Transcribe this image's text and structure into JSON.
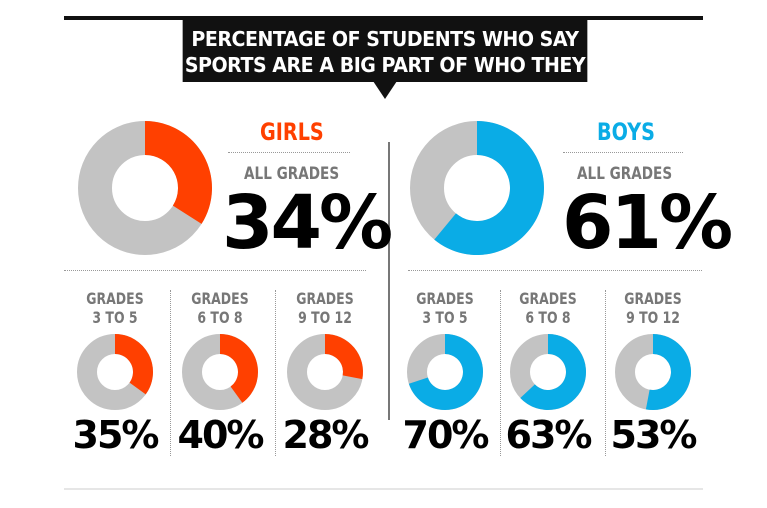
{
  "chart_data": {
    "type": "pie",
    "title": "PERCENTAGE OF STUDENTS WHO SAY SPORTS ARE A BIG PART OF WHO THEY ARE",
    "title_lines": [
      "PERCENTAGE OF STUDENTS WHO SAY",
      "SPORTS ARE A BIG PART OF WHO THEY ARE"
    ],
    "groups": [
      {
        "name": "GIRLS",
        "color": "#ff4000",
        "overall": {
          "label": "ALL GRADES",
          "value": 34,
          "display": "34%"
        },
        "grades": [
          {
            "line1": "GRADES",
            "line2": "3 TO 5",
            "value": 35,
            "display": "35%"
          },
          {
            "line1": "GRADES",
            "line2": "6 TO 8",
            "value": 40,
            "display": "40%"
          },
          {
            "line1": "GRADES",
            "line2": "9 TO 12",
            "value": 28,
            "display": "28%"
          }
        ]
      },
      {
        "name": "BOYS",
        "color": "#0aace6",
        "overall": {
          "label": "ALL GRADES",
          "value": 61,
          "display": "61%"
        },
        "grades": [
          {
            "line1": "GRADES",
            "line2": "3 TO 5",
            "value": 70,
            "display": "70%"
          },
          {
            "line1": "GRADES",
            "line2": "6 TO 8",
            "value": 63,
            "display": "63%"
          },
          {
            "line1": "GRADES",
            "line2": "9 TO 12",
            "value": 53,
            "display": "53%"
          }
        ]
      }
    ],
    "remainder_color": "#c3c3c3"
  }
}
